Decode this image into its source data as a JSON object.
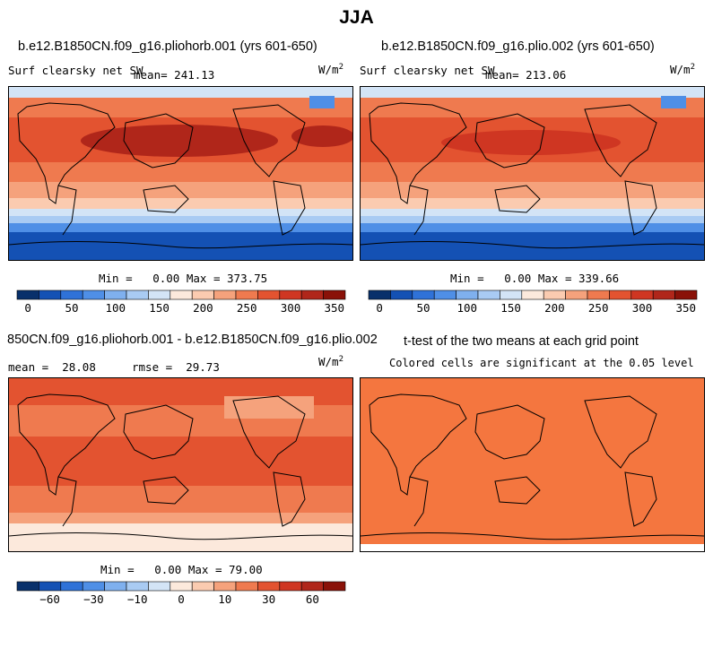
{
  "figure_title": "JJA",
  "units": "W/m",
  "units_sup": "2",
  "colors": {
    "abs_scale": [
      "#08306b",
      "#1451b4",
      "#2f72d8",
      "#4f8fe6",
      "#7fb0ee",
      "#a9cbf3",
      "#d3e4f6",
      "#fce9dc",
      "#fbcbb0",
      "#f5a27c",
      "#ef7a4f",
      "#e35330",
      "#cf3622",
      "#b0261a",
      "#8a1108"
    ],
    "diff_scale": [
      "#08306b",
      "#1451b4",
      "#2f72d8",
      "#4f8fe6",
      "#7fb0ee",
      "#a9cbf3",
      "#d3e4f6",
      "#fce9dc",
      "#fbcbb0",
      "#f5a27c",
      "#ef7a4f",
      "#e35330",
      "#cf3622",
      "#b0261a",
      "#8a1108"
    ],
    "land_line": "#000000",
    "ttest_fill": "#f4763f"
  },
  "panels": {
    "p1": {
      "title": "b.e12.B1850CN.f09_g16.pliohorb.001 (yrs 601-650)",
      "variable": "Surf clearsky net SW",
      "mean_label": "mean=",
      "mean_value": "241.13",
      "min_label": "Min =",
      "min_value": "0.00",
      "max_label": "Max =",
      "max_value": "373.75"
    },
    "p2": {
      "title": "b.e12.B1850CN.f09_g16.plio.002 (yrs 601-650)",
      "variable": "Surf clearsky net SW",
      "mean_label": "mean=",
      "mean_value": "213.06",
      "min_label": "Min =",
      "min_value": "0.00",
      "max_label": "Max =",
      "max_value": "339.66"
    },
    "p3": {
      "title": "850CN.f09_g16.pliohorb.001 - b.e12.B1850CN.f09_g16.plio.002",
      "mean_label": "mean =",
      "mean_value": "28.08",
      "rmse_label": "rmse =",
      "rmse_value": "29.73",
      "min_label": "Min =",
      "min_value": "0.00",
      "max_label": "Max =",
      "max_value": "79.00"
    },
    "p4": {
      "title": "t-test of the two means at each grid point",
      "subtitle": "Colored cells are significant at the 0.05 level"
    }
  },
  "chart_data": [
    {
      "type": "heatmap",
      "title": "b.e12.B1850CN.f09_g16.pliohorb.001 (yrs 601-650)",
      "variable": "Surf clearsky net SW",
      "units": "W/m^2",
      "mean": 241.13,
      "min": 0.0,
      "max": 373.75,
      "colorbar_ticks": [
        "0",
        "50",
        "100",
        "150",
        "200",
        "250",
        "300",
        "350"
      ],
      "colorbar_levels": [
        0,
        25,
        50,
        75,
        100,
        125,
        150,
        175,
        200,
        225,
        250,
        275,
        300,
        325,
        350
      ]
    },
    {
      "type": "heatmap",
      "title": "b.e12.B1850CN.f09_g16.plio.002 (yrs 601-650)",
      "variable": "Surf clearsky net SW",
      "units": "W/m^2",
      "mean": 213.06,
      "min": 0.0,
      "max": 339.66,
      "colorbar_ticks": [
        "0",
        "50",
        "100",
        "150",
        "200",
        "250",
        "300",
        "350"
      ],
      "colorbar_levels": [
        0,
        25,
        50,
        75,
        100,
        125,
        150,
        175,
        200,
        225,
        250,
        275,
        300,
        325,
        350
      ]
    },
    {
      "type": "heatmap",
      "title": "850CN.f09_g16.pliohorb.001 - b.e12.B1850CN.f09_g16.plio.002",
      "units": "W/m^2",
      "mean": 28.08,
      "rmse": 29.73,
      "min": 0.0,
      "max": 79.0,
      "colorbar_ticks": [
        "−60",
        "−30",
        "−10",
        "0",
        "10",
        "30",
        "60"
      ],
      "colorbar_levels": [
        -80,
        -60,
        -45,
        -30,
        -20,
        -10,
        -5,
        0,
        5,
        10,
        20,
        30,
        45,
        60,
        80
      ]
    },
    {
      "type": "heatmap",
      "title": "t-test of the two means at each grid point",
      "subtitle": "Colored cells are significant at the 0.05 level"
    }
  ]
}
